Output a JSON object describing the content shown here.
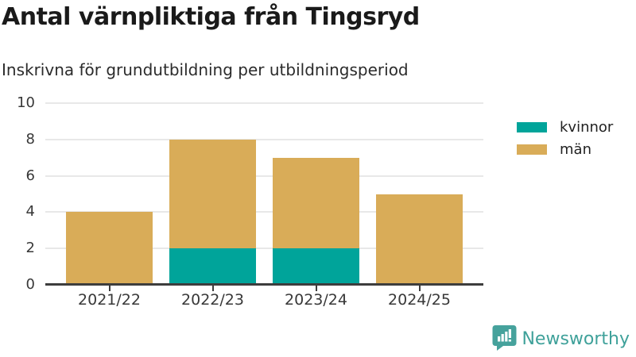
{
  "header": {
    "title": "Antal värnpliktiga från Tingsryd",
    "subtitle": "Inskrivna för grundutbildning per utbildningsperiod"
  },
  "chart_data": {
    "type": "bar",
    "stacked": true,
    "title": "Antal värnpliktiga från Tingsryd",
    "subtitle": "Inskrivna för grundutbildning per utbildningsperiod",
    "categories": [
      "2021/22",
      "2022/23",
      "2023/24",
      "2024/25"
    ],
    "series": [
      {
        "name": "kvinnor",
        "color": "#00a49a",
        "values": [
          0,
          2,
          2,
          0
        ]
      },
      {
        "name": "män",
        "color": "#d9ac58",
        "values": [
          4,
          6,
          5,
          5
        ]
      }
    ],
    "totals": [
      4,
      8,
      7,
      5
    ],
    "xlabel": "",
    "ylabel": "",
    "ylim": [
      0,
      10
    ],
    "yticks": [
      0,
      2,
      4,
      6,
      8,
      10
    ],
    "grid": true,
    "legend_position": "top-right"
  },
  "colors": {
    "kvinnor": "#00a49a",
    "man": "#d9ac58",
    "gridline": "#e8e8e8",
    "axis": "#3d3d3d",
    "title_text": "#1a1a1a",
    "brand_teal": "#3fa19a"
  },
  "footer": {
    "brand": "Newsworthy",
    "logo_icon": "bar-chart-speech-bubble-icon"
  }
}
